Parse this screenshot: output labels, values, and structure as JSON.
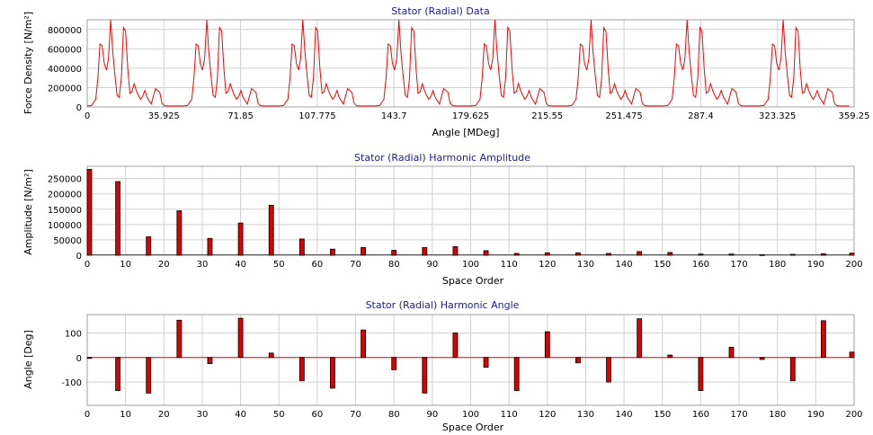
{
  "colors": {
    "series": "#ff0000",
    "bar_fill": "#dd0000",
    "bar_stroke": "#000000",
    "title": "#1a1aa6"
  },
  "chart_data": [
    {
      "type": "line",
      "title": "Stator (Radial) Data",
      "xlabel": "Angle [MDeg]",
      "ylabel": "Force Density [N/m²]",
      "xlim": [
        0,
        359.25
      ],
      "ylim": [
        0,
        900000
      ],
      "xticks": [
        "0",
        "35.925",
        "71.85",
        "107.775",
        "143.7",
        "179.625",
        "215.55",
        "251.475",
        "287.4",
        "323.325",
        "359.25"
      ],
      "xtick_values": [
        0,
        35.925,
        71.85,
        107.775,
        143.7,
        179.625,
        215.55,
        251.475,
        287.4,
        323.325,
        359.25
      ],
      "yticks": [
        0,
        200000,
        400000,
        600000,
        800000
      ],
      "period_deg": 45,
      "x": [
        0,
        2,
        4,
        5,
        6,
        7,
        8,
        9,
        10,
        11,
        12,
        13,
        14,
        15,
        16,
        17,
        18,
        19,
        20,
        21,
        22,
        23,
        24,
        25,
        26,
        27,
        28,
        30,
        32,
        34,
        35,
        36,
        37,
        38,
        40,
        42,
        45
      ],
      "y": [
        10000,
        15000,
        80000,
        300000,
        650000,
        630000,
        450000,
        380000,
        500000,
        900000,
        560000,
        320000,
        120000,
        100000,
        300000,
        820000,
        780000,
        400000,
        140000,
        160000,
        240000,
        170000,
        120000,
        80000,
        110000,
        170000,
        100000,
        30000,
        190000,
        150000,
        40000,
        15000,
        10000,
        10000,
        10000,
        10000,
        10000
      ]
    },
    {
      "type": "bar",
      "title": "Stator (Radial) Harmonic Amplitude",
      "xlabel": "Space Order",
      "ylabel": "Amplitude [N/m²]",
      "xlim": [
        0,
        200
      ],
      "ylim": [
        0,
        290000
      ],
      "xticks": [
        0,
        10,
        20,
        30,
        40,
        50,
        60,
        70,
        80,
        90,
        100,
        110,
        120,
        130,
        140,
        150,
        160,
        170,
        180,
        190,
        200
      ],
      "yticks": [
        0,
        50000,
        100000,
        150000,
        200000,
        250000
      ],
      "x": [
        0,
        8,
        16,
        24,
        32,
        40,
        48,
        56,
        64,
        72,
        80,
        88,
        96,
        104,
        112,
        120,
        128,
        136,
        144,
        152,
        160,
        168,
        176,
        184,
        192,
        200
      ],
      "values": [
        280000,
        240000,
        60000,
        145000,
        55000,
        105000,
        163000,
        53000,
        20000,
        25000,
        16000,
        25000,
        28000,
        15000,
        6000,
        8000,
        8000,
        6000,
        12000,
        9000,
        4000,
        4000,
        2000,
        3000,
        5000,
        7000
      ]
    },
    {
      "type": "bar",
      "title": "Stator (Radial) Harmonic Angle",
      "xlabel": "Space Order",
      "ylabel": "Angle [Deg]",
      "xlim": [
        0,
        200
      ],
      "ylim": [
        -195,
        175
      ],
      "xticks": [
        0,
        10,
        20,
        30,
        40,
        50,
        60,
        70,
        80,
        90,
        100,
        110,
        120,
        130,
        140,
        150,
        160,
        170,
        180,
        190,
        200
      ],
      "yticks": [
        -100,
        0,
        100
      ],
      "x": [
        0,
        8,
        16,
        24,
        32,
        40,
        48,
        56,
        64,
        72,
        80,
        88,
        96,
        104,
        112,
        120,
        128,
        136,
        144,
        152,
        160,
        168,
        176,
        184,
        192,
        200
      ],
      "values": [
        0,
        -135,
        -145,
        152,
        -25,
        160,
        18,
        -95,
        -125,
        112,
        -50,
        -145,
        100,
        -40,
        -135,
        105,
        -22,
        -100,
        158,
        10,
        -135,
        42,
        -8,
        -95,
        150,
        22
      ]
    }
  ]
}
